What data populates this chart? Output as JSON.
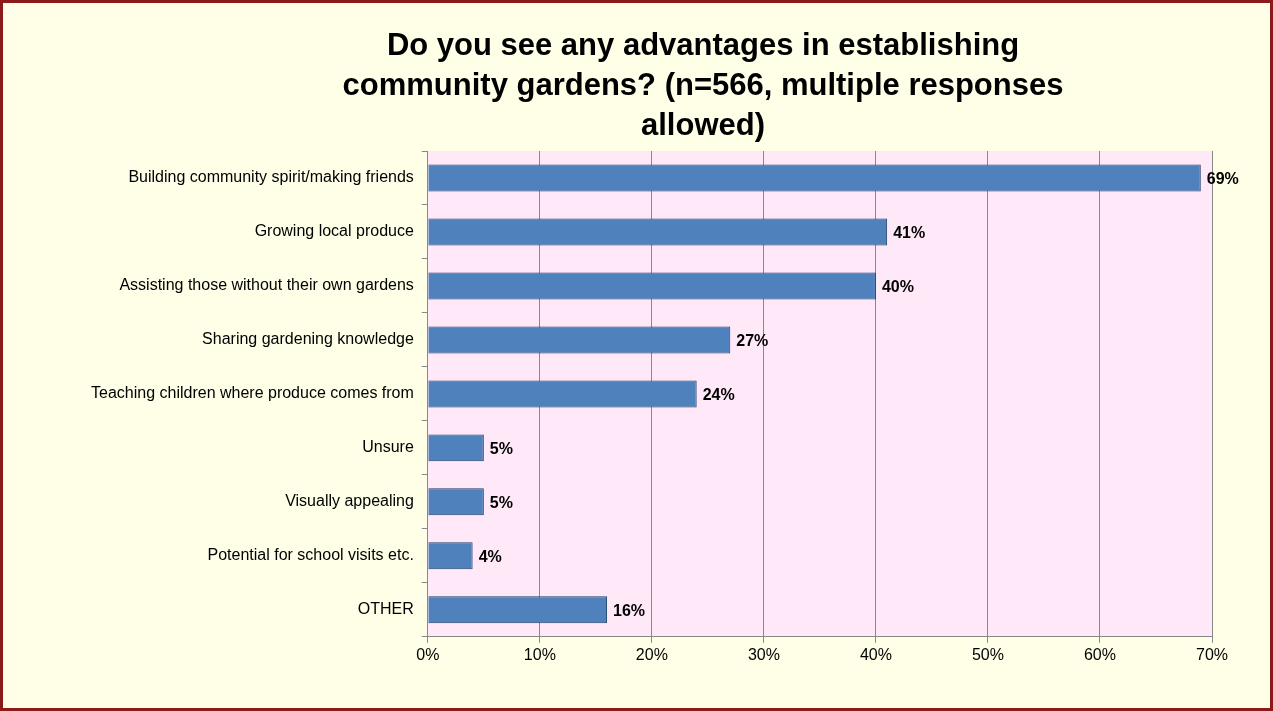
{
  "chart_data": {
    "type": "bar",
    "orientation": "horizontal",
    "title": "Do you see any advantages in establishing community gardens? (n=566, multiple responses allowed)",
    "categories": [
      "Building community spirit/making friends",
      "Growing local produce",
      "Assisting those without their own gardens",
      "Sharing gardening knowledge",
      "Teaching children where produce comes from",
      "Unsure",
      "Visually appealing",
      "Potential for school visits etc.",
      "OTHER"
    ],
    "values": [
      69,
      41,
      40,
      27,
      24,
      5,
      5,
      4,
      16
    ],
    "value_labels": [
      "69%",
      "41%",
      "40%",
      "27%",
      "24%",
      "5%",
      "5%",
      "4%",
      "16%"
    ],
    "color": "#4f81bd",
    "xlim": [
      0,
      70
    ],
    "xticks": [
      {
        "value": 0,
        "label": "0%"
      },
      {
        "value": 10,
        "label": "10%"
      },
      {
        "value": 20,
        "label": "20%"
      },
      {
        "value": 30,
        "label": "30%"
      },
      {
        "value": 40,
        "label": "40%"
      },
      {
        "value": 50,
        "label": "50%"
      },
      {
        "value": 60,
        "label": "60%"
      },
      {
        "value": 70,
        "label": "70%"
      }
    ],
    "grid": "x",
    "legend": false
  }
}
